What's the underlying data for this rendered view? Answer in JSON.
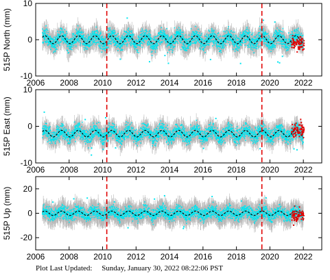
{
  "colors": {
    "errorbar": "#b8b8b8",
    "data": "#00e5f0",
    "model": "#000000",
    "rapid": "#e00000",
    "event": "#e00000",
    "axis": "#000000"
  },
  "footer": {
    "label": "Plot Last Updated:",
    "timestamp": "Sunday, January 30, 2022 08:22:06 PST"
  },
  "chart_data": [
    {
      "type": "scatter",
      "station": "515P",
      "title": "",
      "ylabel": "515P North (mm)",
      "xlabel": "",
      "xlim": [
        2006,
        2023.1
      ],
      "ylim": [
        -10,
        10
      ],
      "yticks": [
        -10,
        0,
        10
      ],
      "xticks": [
        "2006",
        "2008",
        "2010",
        "2012",
        "2014",
        "2016",
        "2018",
        "2020",
        "2022"
      ],
      "x_tick_values": [
        2006,
        2008,
        2010,
        2012,
        2014,
        2016,
        2018,
        2020,
        2022
      ],
      "event_lines": [
        2010.25,
        2019.52
      ],
      "series": [
        {
          "role": "data",
          "x_range": [
            2006.4,
            2022.0
          ],
          "y_mean": 0.0,
          "y_spread": 2.2,
          "error": 1.8,
          "seasonal_amplitude": 1.2,
          "trend": 0.0
        },
        {
          "role": "model",
          "x_range": [
            2006.4,
            2022.0
          ],
          "y_mean": 0.0,
          "seasonal_amplitude": 1.1,
          "trend": 0.0
        },
        {
          "role": "rapid",
          "x_range": [
            2021.3,
            2022.05
          ],
          "y_mean": -0.8,
          "y_spread": 1.8
        }
      ],
      "grid": false
    },
    {
      "type": "scatter",
      "station": "515P",
      "title": "",
      "ylabel": "515P East (mm)",
      "xlabel": "",
      "xlim": [
        2006,
        2023.1
      ],
      "ylim": [
        -10,
        10
      ],
      "yticks": [
        -10,
        0,
        10
      ],
      "xticks": [
        "2006",
        "2008",
        "2010",
        "2012",
        "2014",
        "2016",
        "2018",
        "2020",
        "2022"
      ],
      "x_tick_values": [
        2006,
        2008,
        2010,
        2012,
        2014,
        2016,
        2018,
        2020,
        2022
      ],
      "event_lines": [
        2010.25,
        2019.52
      ],
      "series": [
        {
          "role": "data",
          "x_range": [
            2006.4,
            2022.0
          ],
          "y_mean": -2.0,
          "y_spread": 2.0,
          "error": 1.8,
          "seasonal_amplitude": 1.0,
          "trend": 0.0
        },
        {
          "role": "model",
          "x_range": [
            2006.4,
            2022.0
          ],
          "y_mean": -2.0,
          "seasonal_amplitude": 0.9,
          "trend": 0.0
        },
        {
          "role": "rapid",
          "x_range": [
            2021.3,
            2022.05
          ],
          "y_mean": -1.2,
          "y_spread": 1.8
        }
      ],
      "grid": false
    },
    {
      "type": "scatter",
      "station": "515P",
      "title": "",
      "ylabel": "515P Up (mm)",
      "xlabel": "",
      "xlim": [
        2006,
        2023.1
      ],
      "ylim": [
        -30,
        30
      ],
      "yticks": [
        -20,
        0,
        20
      ],
      "xticks": [
        "2006",
        "2008",
        "2010",
        "2012",
        "2014",
        "2016",
        "2018",
        "2020",
        "2022"
      ],
      "x_tick_values": [
        2006,
        2008,
        2010,
        2012,
        2014,
        2016,
        2018,
        2020,
        2022
      ],
      "event_lines": [
        2010.25,
        2019.52
      ],
      "series": [
        {
          "role": "data",
          "x_range": [
            2006.4,
            2022.0
          ],
          "y_mean": 0.0,
          "y_spread": 5.0,
          "error": 6.0,
          "seasonal_amplitude": 2.0,
          "trend": 0.0
        },
        {
          "role": "model",
          "x_range": [
            2006.4,
            2022.0
          ],
          "y_mean": 0.0,
          "seasonal_amplitude": 1.8,
          "trend": 0.0
        },
        {
          "role": "rapid",
          "x_range": [
            2021.3,
            2022.05
          ],
          "y_mean": -1.5,
          "y_spread": 5.0
        }
      ],
      "grid": false
    }
  ]
}
